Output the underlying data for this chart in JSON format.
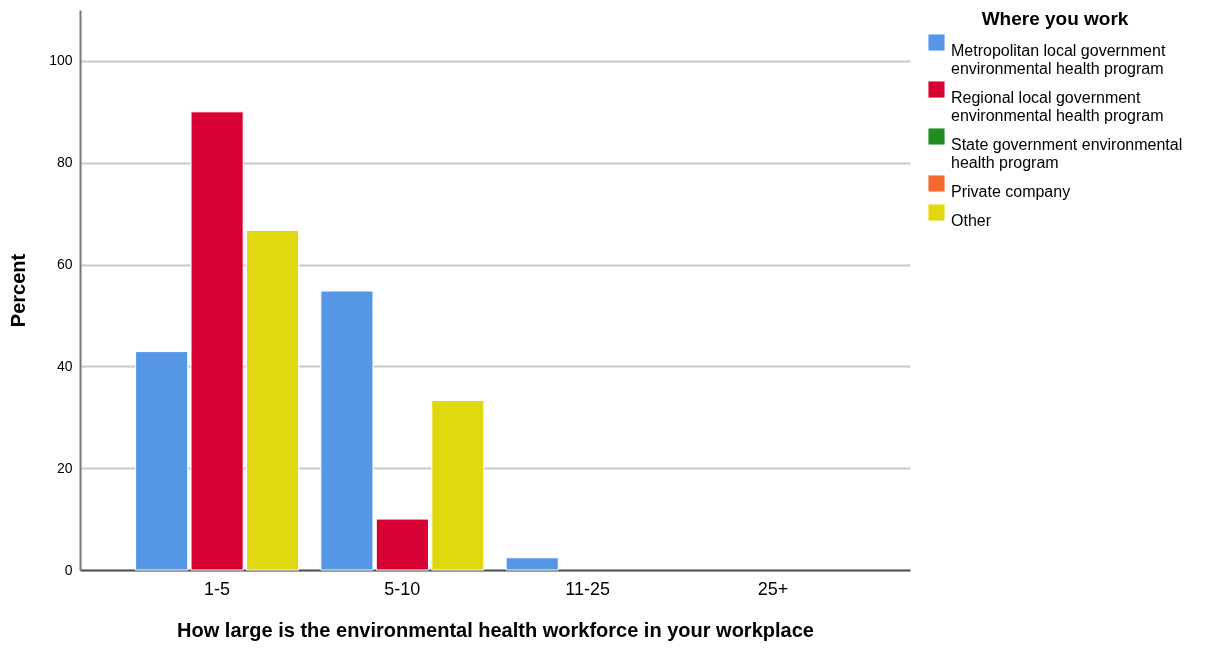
{
  "chart_data": {
    "type": "bar",
    "xlabel": "How large is the environmental health workforce in your workplace",
    "ylabel": "Percent",
    "legend_title": "Where you work",
    "categories": [
      "1-5",
      "5-10",
      "11-25",
      "25+"
    ],
    "series": [
      {
        "name": "Metropolitan local government environmental health program",
        "color": "#5596e6",
        "values": [
          42.9,
          54.8,
          2.4,
          null
        ]
      },
      {
        "name": "Regional local government environmental health program",
        "color": "#d60032",
        "values": [
          90,
          10,
          null,
          null
        ]
      },
      {
        "name": "State government environmental health program",
        "color": "#228b22",
        "values": [
          null,
          null,
          null,
          null
        ]
      },
      {
        "name": "Private company",
        "color": "#f56a2c",
        "values": [
          null,
          null,
          null,
          null
        ]
      },
      {
        "name": "Other",
        "color": "#e1d80f",
        "values": [
          66.7,
          33.3,
          null,
          null
        ]
      }
    ],
    "ylim": [
      0,
      110
    ],
    "yticks": [
      0,
      20,
      40,
      60,
      80,
      100
    ],
    "grid": "y",
    "legend": "top right"
  }
}
